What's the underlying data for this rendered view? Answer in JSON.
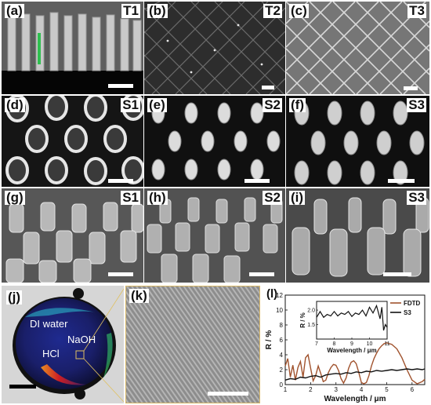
{
  "panels": {
    "a": {
      "label": "(a)",
      "tag": "T1"
    },
    "b": {
      "label": "(b)",
      "tag": "T2"
    },
    "c": {
      "label": "(c)",
      "tag": "T3"
    },
    "d": {
      "label": "(d)",
      "tag": "S1"
    },
    "e": {
      "label": "(e)",
      "tag": "S2"
    },
    "f": {
      "label": "(f)",
      "tag": "S3"
    },
    "g": {
      "label": "(g)",
      "tag": "S1"
    },
    "h": {
      "label": "(h)",
      "tag": "S2"
    },
    "i": {
      "label": "(i)",
      "tag": "S3"
    },
    "j": {
      "label": "(j)",
      "labels": [
        "DI water",
        "NaOH",
        "HCl"
      ]
    },
    "k": {
      "label": "(k)"
    },
    "l": {
      "label": "(l)"
    }
  },
  "chart_data": {
    "type": "line",
    "xlabel": "Wavelength / μm",
    "ylabel": "R / %",
    "xlim": [
      1,
      6.5
    ],
    "ylim": [
      0,
      12
    ],
    "xticks": [
      "1",
      "2",
      "3",
      "4",
      "5",
      "6"
    ],
    "yticks": [
      "0",
      "2",
      "4",
      "6",
      "8",
      "10",
      "12"
    ],
    "legend": "top-right",
    "series": [
      {
        "name": "FDTD",
        "color": "#a0522d",
        "x": [
          1.0,
          1.1,
          1.2,
          1.3,
          1.4,
          1.5,
          1.6,
          1.7,
          1.8,
          1.9,
          2.0,
          2.1,
          2.2,
          2.3,
          2.4,
          2.5,
          2.6,
          2.7,
          2.8,
          2.9,
          3.0,
          3.1,
          3.2,
          3.3,
          3.4,
          3.5,
          3.6,
          3.7,
          3.8,
          3.9,
          4.0,
          4.1,
          4.2,
          4.3,
          4.4,
          4.5,
          4.6,
          4.7,
          4.8,
          4.9,
          5.0,
          5.2,
          5.4,
          5.6,
          5.8,
          6.0,
          6.2,
          6.4,
          6.5
        ],
        "y": [
          2.5,
          3.5,
          1.0,
          2.6,
          0.6,
          2.3,
          3.1,
          1.0,
          3.6,
          4.0,
          2.2,
          0.5,
          1.2,
          2.5,
          1.5,
          0.4,
          0.6,
          1.6,
          2.3,
          2.7,
          2.6,
          1.9,
          0.8,
          0.2,
          0.9,
          2.2,
          3.0,
          3.2,
          2.8,
          1.6,
          0.3,
          0.1,
          0.3,
          1.2,
          2.5,
          3.5,
          4.2,
          4.8,
          5.2,
          5.5,
          5.6,
          5.4,
          4.8,
          3.6,
          2.0,
          0.6,
          0.1,
          0.4,
          0.7
        ]
      },
      {
        "name": "S3",
        "color": "#111111",
        "x": [
          1.0,
          1.2,
          1.4,
          1.6,
          1.8,
          2.0,
          2.2,
          2.4,
          2.6,
          2.8,
          3.0,
          3.2,
          3.4,
          3.6,
          3.8,
          4.0,
          4.2,
          4.4,
          4.6,
          4.8,
          5.0,
          5.2,
          5.4,
          5.6,
          5.8,
          6.0,
          6.2,
          6.4,
          6.5
        ],
        "y": [
          0.6,
          0.8,
          0.7,
          1.0,
          0.9,
          1.1,
          1.2,
          1.0,
          1.3,
          1.4,
          1.5,
          1.4,
          1.6,
          1.5,
          1.7,
          1.6,
          1.8,
          1.7,
          1.9,
          1.8,
          1.9,
          2.0,
          1.9,
          2.0,
          2.1,
          2.0,
          2.1,
          2.0,
          2.1
        ]
      }
    ],
    "inset": {
      "type": "line",
      "xlabel": "Wavelength / μm",
      "ylabel": "R / %",
      "xlim": [
        7,
        11
      ],
      "ylim": [
        1.0,
        2.3
      ],
      "xticks": [
        "7",
        "8",
        "9",
        "10",
        "11"
      ],
      "yticks": [
        "1.5",
        "2.0"
      ],
      "series": [
        {
          "name": "S3",
          "color": "#111111",
          "x": [
            7.0,
            7.2,
            7.4,
            7.6,
            7.8,
            8.0,
            8.2,
            8.4,
            8.6,
            8.8,
            9.0,
            9.2,
            9.4,
            9.6,
            9.8,
            10.0,
            10.2,
            10.4,
            10.6,
            10.7,
            10.8,
            10.9,
            11.0
          ],
          "y": [
            1.75,
            1.95,
            1.75,
            1.85,
            1.8,
            1.95,
            1.8,
            1.9,
            1.85,
            1.95,
            1.78,
            1.9,
            1.85,
            2.0,
            1.8,
            2.1,
            1.9,
            2.15,
            1.7,
            2.1,
            1.3,
            1.5,
            1.4
          ]
        }
      ]
    }
  }
}
